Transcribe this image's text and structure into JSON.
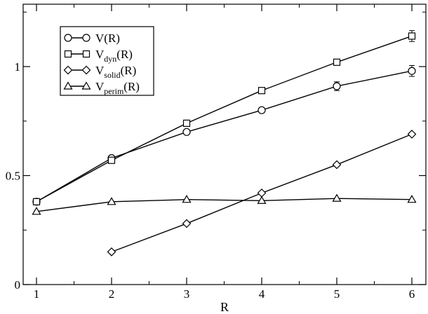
{
  "chart_data": {
    "type": "line",
    "title": "",
    "xlabel": "R",
    "ylabel": "",
    "xlim": [
      0.75,
      6.25
    ],
    "ylim": [
      0,
      1.25
    ],
    "x_ticks": [
      1,
      2,
      3,
      4,
      5,
      6
    ],
    "y_ticks": [
      0,
      0.5,
      1
    ],
    "x_tick_labels": [
      "1",
      "2",
      "3",
      "4",
      "5",
      "6"
    ],
    "y_tick_labels": [
      "0",
      "0.5",
      "1"
    ],
    "grid": false,
    "legend_position": "top-left",
    "series": [
      {
        "name": "V(R)",
        "name_main": "V",
        "name_sub": "",
        "name_suffix": "(R)",
        "marker": "circle",
        "x": [
          1,
          2,
          3,
          4,
          5,
          6
        ],
        "y": [
          0.38,
          0.58,
          0.7,
          0.8,
          0.91,
          0.98
        ],
        "err": [
          0,
          0,
          0,
          0,
          0.02,
          0.025
        ]
      },
      {
        "name": "Vdyn(R)",
        "name_main": "V",
        "name_sub": "dyn",
        "name_suffix": "(R)",
        "marker": "square",
        "x": [
          1,
          2,
          3,
          4,
          5,
          6
        ],
        "y": [
          0.38,
          0.57,
          0.74,
          0.89,
          1.02,
          1.14
        ],
        "err": [
          0,
          0,
          0,
          0,
          0,
          0.025
        ]
      },
      {
        "name": "Vsolid(R)",
        "name_main": "V",
        "name_sub": "solid",
        "name_suffix": "(R)",
        "marker": "diamond",
        "x": [
          2,
          3,
          4,
          5,
          6
        ],
        "y": [
          0.15,
          0.28,
          0.42,
          0.55,
          0.69
        ],
        "err": [
          0,
          0,
          0,
          0,
          0
        ]
      },
      {
        "name": "Vperim(R)",
        "name_main": "V",
        "name_sub": "perim",
        "name_suffix": "(R)",
        "marker": "triangle",
        "x": [
          1,
          2,
          3,
          4,
          5,
          6
        ],
        "y": [
          0.335,
          0.38,
          0.39,
          0.385,
          0.395,
          0.39
        ],
        "err": [
          0,
          0,
          0,
          0,
          0,
          0
        ]
      }
    ]
  }
}
